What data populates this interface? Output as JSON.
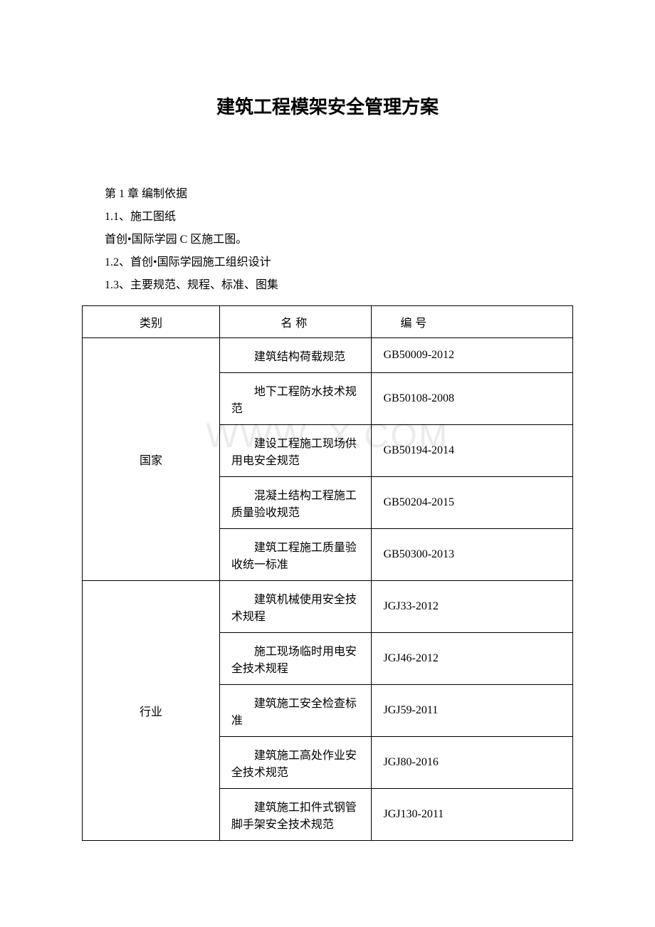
{
  "document": {
    "title": "建筑工程模架安全管理方案",
    "watermark": "WWW.        X.COM",
    "paragraphs": {
      "p1": "第 1 章 编制依据",
      "p2": "1.1、施工图纸",
      "p3": "首创•国际学园 C 区施工图。",
      "p4": "1.2、首创•国际学园施工组织设计",
      "p5": "1.3、主要规范、规程、标准、图集"
    },
    "table": {
      "headers": {
        "category": "类别",
        "name": "名称",
        "code": "编号"
      },
      "groups": [
        {
          "category": "国家",
          "rows": [
            {
              "name": "建筑结构荷载规范",
              "code": "GB50009-2012"
            },
            {
              "name": "地下工程防水技术规范",
              "code": "GB50108-2008"
            },
            {
              "name": "建设工程施工现场供用电安全规范",
              "code": "GB50194-2014"
            },
            {
              "name": "混凝土结构工程施工质量验收规范",
              "code": "GB50204-2015"
            },
            {
              "name": "建筑工程施工质量验收统一标准",
              "code": "GB50300-2013"
            }
          ]
        },
        {
          "category": "行业",
          "rows": [
            {
              "name": "建筑机械使用安全技术规程",
              "code": "JGJ33-2012"
            },
            {
              "name": "施工现场临时用电安全技术规程",
              "code": "JGJ46-2012"
            },
            {
              "name": "建筑施工安全检查标准",
              "code": "JGJ59-2011"
            },
            {
              "name": "建筑施工高处作业安全技术规范",
              "code": "JGJ80-2016"
            },
            {
              "name": "建筑施工扣件式钢管脚手架安全技术规范",
              "code": "JGJ130-2011"
            }
          ]
        }
      ]
    }
  }
}
